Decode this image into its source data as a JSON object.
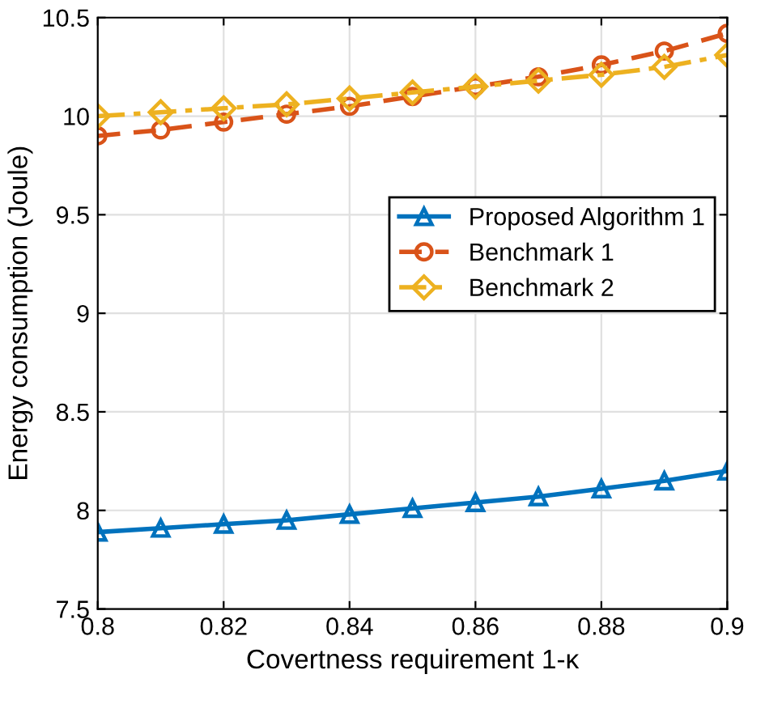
{
  "chart_data": {
    "type": "line",
    "xlabel": "Covertness requirement 1-κ",
    "ylabel": "Energy consumption (Joule)",
    "x": [
      0.8,
      0.81,
      0.82,
      0.83,
      0.84,
      0.85,
      0.86,
      0.87,
      0.88,
      0.89,
      0.9
    ],
    "series": [
      {
        "name": "Proposed Algorithm 1",
        "color": "#0072bd",
        "marker": "triangle",
        "line_style": "solid",
        "values": [
          7.89,
          7.91,
          7.93,
          7.95,
          7.98,
          8.01,
          8.04,
          8.07,
          8.11,
          8.15,
          8.2
        ]
      },
      {
        "name": "Benchmark 1",
        "color": "#d95319",
        "marker": "circle",
        "line_style": "dashed",
        "values": [
          9.9,
          9.93,
          9.97,
          10.01,
          10.05,
          10.1,
          10.15,
          10.2,
          10.26,
          10.33,
          10.42
        ]
      },
      {
        "name": "Benchmark 2",
        "color": "#edb120",
        "marker": "diamond",
        "line_style": "dashdot",
        "values": [
          10.0,
          10.02,
          10.04,
          10.06,
          10.09,
          10.12,
          10.15,
          10.18,
          10.21,
          10.25,
          10.31
        ]
      }
    ],
    "xlim": [
      0.8,
      0.9
    ],
    "xticks": [
      0.8,
      0.82,
      0.84,
      0.86,
      0.88,
      0.9
    ],
    "ylim": [
      7.5,
      10.5
    ],
    "yticks": [
      7.5,
      8,
      8.5,
      9,
      9.5,
      10,
      10.5
    ],
    "grid": true,
    "legend": "right"
  }
}
